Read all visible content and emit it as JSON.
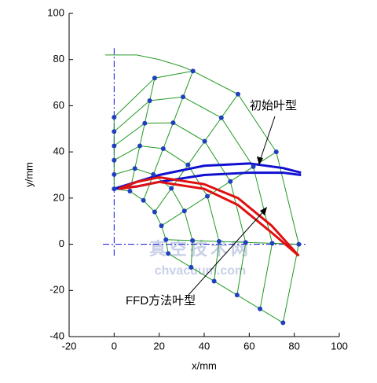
{
  "chart_data": {
    "type": "lattice",
    "xlabel": "x/mm",
    "ylabel": "y/mm",
    "xlim": [
      -20,
      100
    ],
    "xticks": [
      -20,
      0,
      20,
      40,
      60,
      80,
      100
    ],
    "ylim": [
      -40,
      100
    ],
    "yticks": [
      -40,
      -20,
      0,
      20,
      40,
      60,
      80,
      100
    ],
    "lattice_color": "#1f9a1f",
    "point_color": "#1f3fbf",
    "lattice": [
      {
        "x": [
          0,
          7,
          13,
          18,
          21,
          23,
          24
        ],
        "y": [
          24,
          23,
          19,
          14,
          8,
          2,
          -4
        ]
      },
      {
        "x": [
          0,
          9.2,
          17.4,
          25.4,
          31.2,
          34.8,
          34.2
        ],
        "y": [
          30.2,
          32.8,
          30.2,
          24.2,
          14.4,
          1.6,
          -10
        ]
      },
      {
        "x": [
          0,
          11.4,
          21.8,
          32.8,
          41.4,
          46.6,
          44.4
        ],
        "y": [
          36.4,
          42.6,
          41.4,
          34.4,
          20.8,
          1.2,
          -16
        ]
      },
      {
        "x": [
          0,
          13.6,
          26.2,
          40.2,
          51.6,
          58.4,
          54.6
        ],
        "y": [
          42.6,
          52.4,
          52.6,
          44.6,
          27.2,
          0.8,
          -22
        ]
      },
      {
        "x": [
          0,
          15.8,
          30.6,
          47.6,
          61.8,
          70.2,
          64.8
        ],
        "y": [
          48.8,
          62.2,
          63.8,
          54.8,
          33.6,
          0.4,
          -28
        ]
      },
      {
        "x": [
          0,
          18,
          35,
          55,
          72,
          82,
          75
        ],
        "y": [
          55,
          72,
          75,
          65,
          40,
          0,
          -34
        ]
      }
    ],
    "ref_lines": [
      {
        "x": [
          0,
          0
        ],
        "y": [
          -5,
          85
        ]
      },
      {
        "x": [
          -5,
          85
        ],
        "y": [
          0,
          0
        ]
      }
    ],
    "curves": [
      {
        "color": "#2a9a2a",
        "width": 1,
        "x": [
          -4,
          10,
          20,
          30,
          35
        ],
        "y": [
          82,
          82,
          80,
          77,
          75
        ]
      },
      {
        "color": "#1010d0",
        "width": 3,
        "x": [
          0,
          10,
          20,
          40,
          60,
          75,
          83
        ],
        "y": [
          24,
          27,
          30,
          34,
          35,
          33,
          31
        ]
      },
      {
        "color": "#1010d0",
        "width": 3,
        "x": [
          0,
          10,
          20,
          40,
          60,
          75,
          83
        ],
        "y": [
          24,
          25,
          27,
          30,
          31,
          31,
          30
        ]
      },
      {
        "color": "#e01010",
        "width": 3,
        "x": [
          2,
          10,
          20,
          40,
          55,
          70,
          82
        ],
        "y": [
          24,
          27,
          29,
          26,
          20,
          8,
          -5
        ]
      },
      {
        "color": "#e01010",
        "width": 3,
        "x": [
          2,
          10,
          20,
          40,
          55,
          70,
          82
        ],
        "y": [
          24,
          25,
          27,
          24,
          17,
          5,
          -5
        ]
      }
    ],
    "annotations": [
      "初始叶型",
      "FFD方法叶型"
    ],
    "watermark": [
      "真空技术网",
      "chvacuum.com"
    ]
  }
}
